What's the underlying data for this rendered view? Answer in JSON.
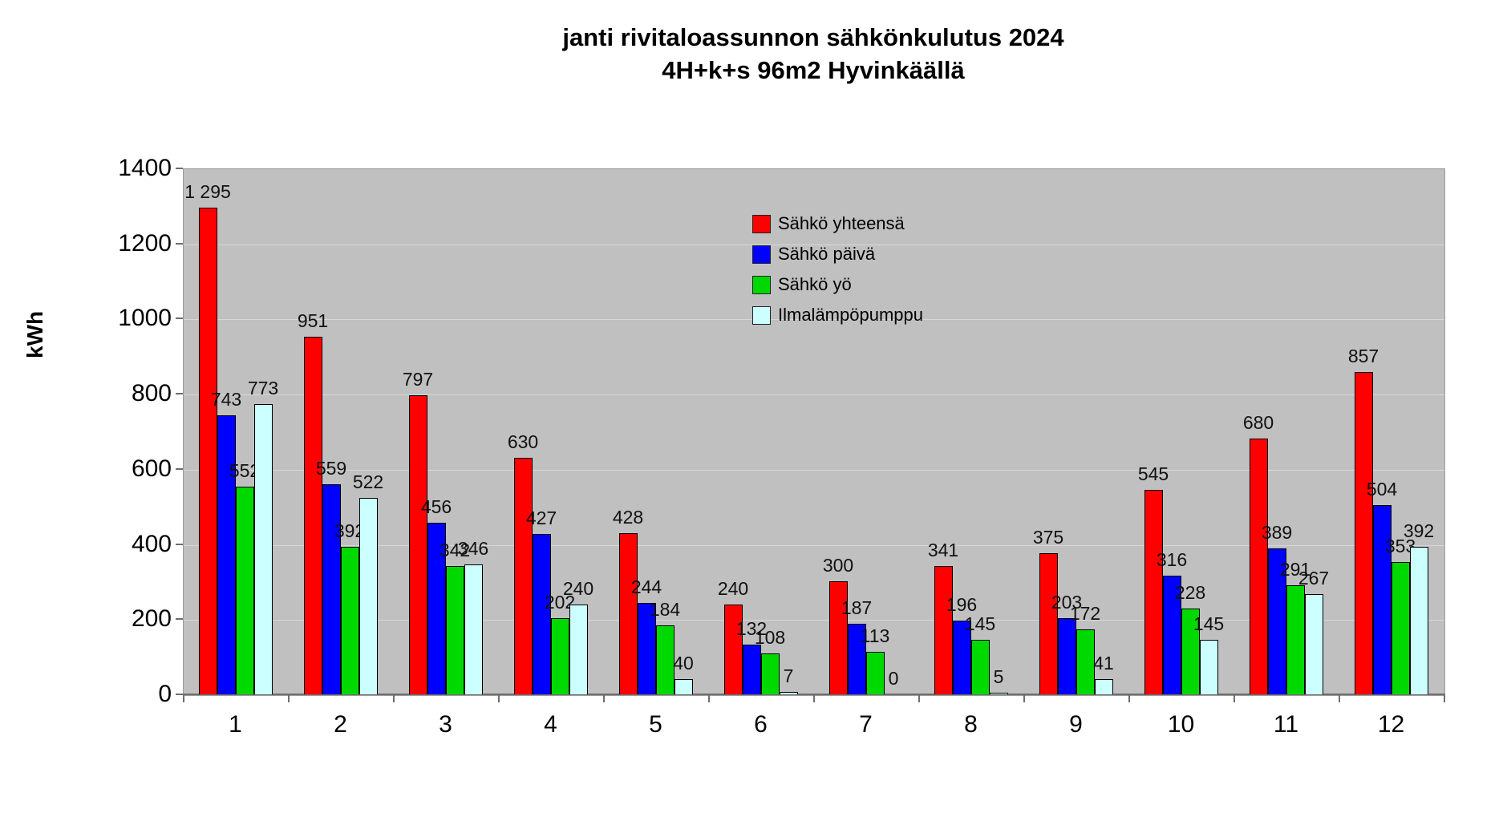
{
  "title": {
    "line1": "janti rivitaloassunnon sähkönkulutus 2024",
    "line2": "4H+k+s 96m2 Hyvinkäällä"
  },
  "axes": {
    "y_title": "kWh"
  },
  "chart_data": {
    "type": "bar",
    "title": "janti rivitaloassunnon sähkönkulutus 2024",
    "subtitle": "4H+k+s 96m2 Hyvinkäällä",
    "ylabel": "kWh",
    "xlabel": "",
    "ylim": [
      0,
      1400
    ],
    "ytick_step": 200,
    "ytick_labels": [
      "0",
      "200",
      "400",
      "600",
      "800",
      "1000",
      "1200",
      "1400"
    ],
    "grid": true,
    "legend_position": "inside-top-center",
    "plot_background": "#c0c0c0",
    "gridline_color": "#d8d8d8",
    "categories": [
      "1",
      "2",
      "3",
      "4",
      "5",
      "6",
      "7",
      "8",
      "9",
      "10",
      "11",
      "12"
    ],
    "series": [
      {
        "name": "Sähkö yhteensä",
        "color": "#ff0000",
        "values": [
          1295,
          951,
          797,
          630,
          428,
          240,
          300,
          341,
          375,
          545,
          680,
          857
        ]
      },
      {
        "name": "Sähkö päivä",
        "color": "#0000ff",
        "values": [
          743,
          559,
          456,
          427,
          244,
          132,
          187,
          196,
          203,
          316,
          389,
          504
        ]
      },
      {
        "name": "Sähkö yö",
        "color": "#00d900",
        "values": [
          552,
          392,
          342,
          202,
          184,
          108,
          113,
          145,
          172,
          228,
          291,
          353
        ]
      },
      {
        "name": "Ilmalämpöpumppu",
        "color": "#ccffff",
        "values": [
          773,
          522,
          346,
          240,
          40,
          7,
          0,
          5,
          41,
          145,
          267,
          392
        ]
      }
    ]
  }
}
